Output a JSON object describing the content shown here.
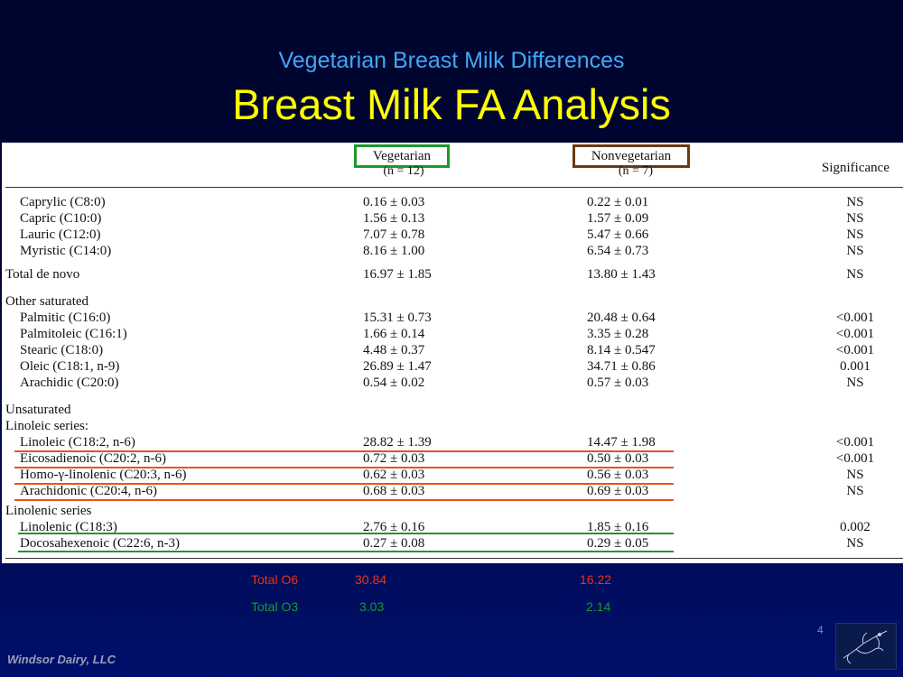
{
  "slide": {
    "subtitle": "Vegetarian Breast Milk Differences",
    "title": "Breast Milk FA Analysis",
    "footer": "Windsor Dairy, LLC",
    "page_number": "4",
    "logo_icon": "bird-sketch-logo"
  },
  "table": {
    "headers": {
      "vegetarian": "Vegetarian",
      "vegetarian_n": "(n = 12)",
      "nonvegetarian": "Nonvegetarian",
      "nonvegetarian_n": "(n = 7)",
      "significance": "Significance"
    },
    "rows": [
      {
        "label": "Caprylic (C8:0)",
        "veg": "0.16 ± 0.03",
        "non": "0.22 ± 0.01",
        "sig": "NS"
      },
      {
        "label": "Capric (C10:0)",
        "veg": "1.56 ± 0.13",
        "non": "1.57 ± 0.09",
        "sig": "NS"
      },
      {
        "label": "Lauric (C12:0)",
        "veg": "7.07 ± 0.78",
        "non": "5.47 ± 0.66",
        "sig": "NS"
      },
      {
        "label": "Myristic (C14:0)",
        "veg": "8.16 ± 1.00",
        "non": "6.54 ± 0.73",
        "sig": "NS"
      },
      {
        "label": "Total de novo",
        "veg": "16.97 ± 1.85",
        "non": "13.80 ± 1.43",
        "sig": "NS"
      },
      {
        "label": "Other saturated",
        "veg": "",
        "non": "",
        "sig": ""
      },
      {
        "label": "Palmitic (C16:0)",
        "veg": "15.31 ± 0.73",
        "non": "20.48 ± 0.64",
        "sig": "<0.001"
      },
      {
        "label": "Palmitoleic (C16:1)",
        "veg": "1.66 ± 0.14",
        "non": "3.35 ± 0.28",
        "sig": "<0.001"
      },
      {
        "label": "Stearic (C18:0)",
        "veg": "4.48 ± 0.37",
        "non": "8.14 ± 0.547",
        "sig": "<0.001"
      },
      {
        "label": "Oleic (C18:1, n-9)",
        "veg": "26.89 ± 1.47",
        "non": "34.71 ± 0.86",
        "sig": "0.001"
      },
      {
        "label": "Arachidic (C20:0)",
        "veg": "0.54 ± 0.02",
        "non": "0.57 ± 0.03",
        "sig": "NS"
      },
      {
        "label": "Unsaturated",
        "veg": "",
        "non": "",
        "sig": ""
      },
      {
        "label": "Linoleic series:",
        "veg": "",
        "non": "",
        "sig": ""
      },
      {
        "label": "Linoleic (C18:2, n-6)",
        "veg": "28.82 ± 1.39",
        "non": "14.47 ± 1.98",
        "sig": "<0.001"
      },
      {
        "label": "Eicosadienoic (C20:2, n-6)",
        "veg": "0.72 ± 0.03",
        "non": "0.50 ± 0.03",
        "sig": "<0.001"
      },
      {
        "label": "Homo-γ-linolenic (C20:3, n-6)",
        "veg": "0.62 ± 0.03",
        "non": "0.56 ± 0.03",
        "sig": "NS"
      },
      {
        "label": "Arachidonic (C20:4, n-6)",
        "veg": "0.68 ± 0.03",
        "non": "0.69 ± 0.03",
        "sig": "NS"
      },
      {
        "label": "Linolenic series",
        "veg": "",
        "non": "",
        "sig": ""
      },
      {
        "label": "Linolenic (C18:3)",
        "veg": "2.76 ± 0.16",
        "non": "1.85 ± 0.16",
        "sig": "0.002"
      },
      {
        "label": "Docosahexenoic (C22:6, n-3)",
        "veg": "0.27 ± 0.08",
        "non": "0.29 ± 0.05",
        "sig": "NS"
      }
    ]
  },
  "totals": {
    "o6": {
      "label": "Total  O6",
      "veg": "30.84",
      "non": "16.22"
    },
    "o3": {
      "label": "Total  O3",
      "veg": "3.03",
      "non": "2.14"
    }
  },
  "colors": {
    "title": "#ffff00",
    "subtitle": "#3fa8f5",
    "omega6": "#e8531a",
    "omega3": "#1a9a2a",
    "veg_box": "#1a9a2a",
    "nonveg_box": "#6b3a10"
  }
}
